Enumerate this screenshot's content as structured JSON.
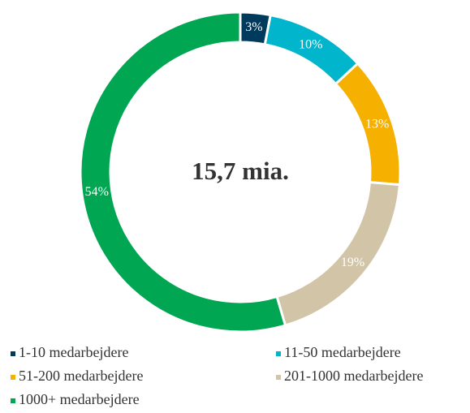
{
  "chart_data": {
    "type": "donut",
    "center_label": "15,7 mia.",
    "categories": [
      "1-10 medarbejdere",
      "11-50 medarbejdere",
      "51-200 medarbejdere",
      "201-1000 medarbejdere",
      "1000+ medarbejdere"
    ],
    "values": [
      3,
      10,
      13,
      19,
      54
    ],
    "value_labels": [
      "3%",
      "10%",
      "13%",
      "19%",
      "54%"
    ],
    "colors": [
      "#003a5d",
      "#00b5cc",
      "#f5b000",
      "#d2c4a6",
      "#00a651"
    ],
    "legend": "bottom"
  }
}
